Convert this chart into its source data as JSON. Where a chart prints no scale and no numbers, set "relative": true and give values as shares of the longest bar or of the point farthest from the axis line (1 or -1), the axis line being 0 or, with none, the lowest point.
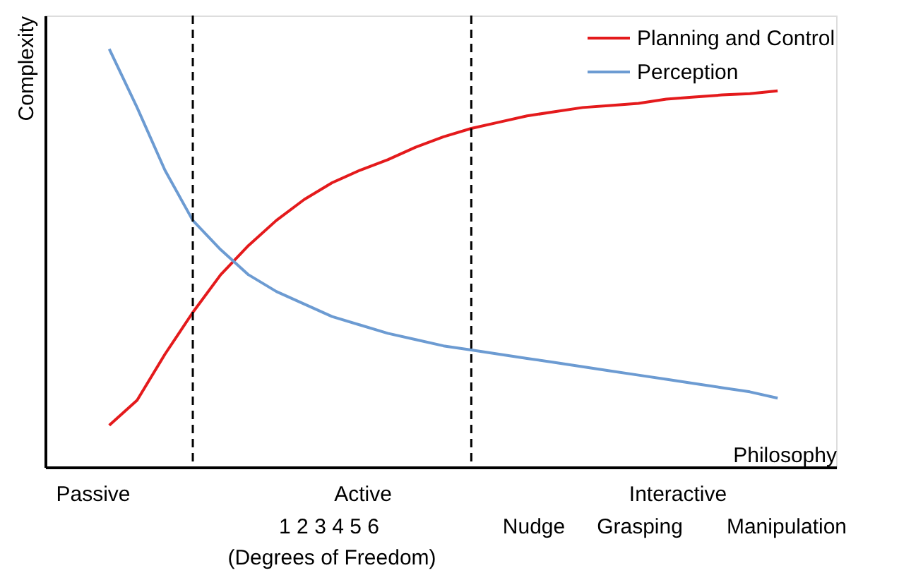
{
  "chart_data": {
    "type": "line",
    "relative": true,
    "xlabel": "Philosophy",
    "ylabel": "Complexity",
    "legend": "top right",
    "categories": [
      null,
      null,
      null,
      null,
      null,
      null,
      null,
      null,
      null,
      null,
      null,
      null,
      null,
      null,
      null,
      null,
      null,
      null,
      null,
      null,
      null,
      null,
      null,
      null,
      null
    ],
    "series": [
      {
        "name": "Planning and Control",
        "color": "#e41a1c",
        "values": [
          0.1,
          0.16,
          0.27,
          0.37,
          0.46,
          0.53,
          0.59,
          0.64,
          0.68,
          0.71,
          0.735,
          0.765,
          0.79,
          0.81,
          0.825,
          0.84,
          0.85,
          0.86,
          0.865,
          0.87,
          0.88,
          0.885,
          0.89,
          0.893,
          0.9
        ]
      },
      {
        "name": "Perception",
        "color": "#6c9bd2",
        "values": [
          1.0,
          0.86,
          0.71,
          0.59,
          0.52,
          0.46,
          0.42,
          0.39,
          0.36,
          0.34,
          0.32,
          0.305,
          0.29,
          0.28,
          0.27,
          0.26,
          0.25,
          0.24,
          0.23,
          0.22,
          0.21,
          0.2,
          0.19,
          0.18,
          0.165
        ]
      }
    ],
    "annotations": [
      "Passive",
      "Active",
      "1 2 3 4 5 6",
      "(Degrees of Freedom)",
      "Interactive",
      "Nudge",
      "Grasping",
      "Manipulation"
    ]
  }
}
